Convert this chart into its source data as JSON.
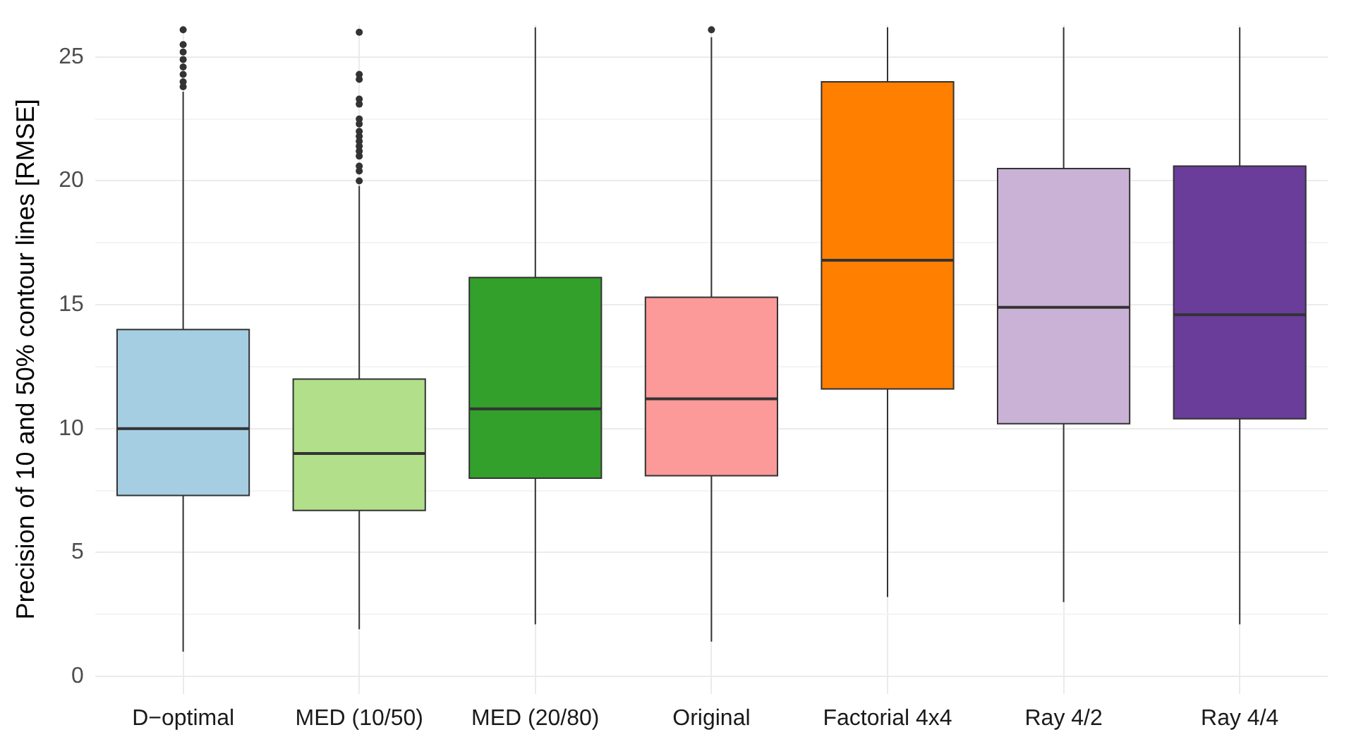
{
  "chart_data": {
    "type": "box",
    "ylabel": "Precision of 10 and 50% contour lines [RMSE]",
    "categories": [
      "D−optimal",
      "MED (10/50)",
      "MED (20/80)",
      "Original",
      "Factorial 4x4",
      "Ray 4/2",
      "Ray 4/4"
    ],
    "colors": [
      "#a6cee3",
      "#b2df8a",
      "#33a02c",
      "#fb9a99",
      "#ff7f00",
      "#cab2d6",
      "#6a3d9a"
    ],
    "boxes": [
      {
        "low": 1.0,
        "q1": 7.3,
        "median": 10.0,
        "q3": 14.0,
        "high": 23.6,
        "outliers": [
          23.8,
          24.0,
          24.3,
          24.6,
          24.9,
          25.2,
          25.5,
          26.1
        ]
      },
      {
        "low": 1.9,
        "q1": 6.7,
        "median": 9.0,
        "q3": 12.0,
        "high": 19.8,
        "outliers": [
          20.0,
          20.4,
          20.6,
          21.0,
          21.2,
          21.4,
          21.6,
          21.8,
          22.0,
          22.3,
          22.5,
          23.1,
          23.3,
          24.1,
          24.3,
          26.0
        ]
      },
      {
        "low": 2.1,
        "q1": 8.0,
        "median": 10.8,
        "q3": 16.1,
        "high": 26.2
      },
      {
        "low": 1.4,
        "q1": 8.1,
        "median": 11.2,
        "q3": 15.3,
        "high": 25.8,
        "outliers": [
          26.1
        ]
      },
      {
        "low": 3.2,
        "q1": 11.6,
        "median": 16.8,
        "q3": 24.0,
        "high": 26.2
      },
      {
        "low": 3.0,
        "q1": 10.2,
        "median": 14.9,
        "q3": 20.5,
        "high": 26.2
      },
      {
        "low": 2.1,
        "q1": 10.4,
        "median": 14.6,
        "q3": 20.6,
        "high": 26.2
      }
    ],
    "ylim": [
      -0.7,
      26.3
    ],
    "yticks": [
      0,
      {
        "value": 2.5,
        "label": null
      },
      5,
      {
        "value": 7.5,
        "label": null
      },
      10,
      {
        "value": 12.5,
        "label": null
      },
      15,
      {
        "value": 17.5,
        "label": null
      },
      20,
      {
        "value": 22.5,
        "label": null
      },
      25
    ],
    "grid": true,
    "legend": false
  }
}
